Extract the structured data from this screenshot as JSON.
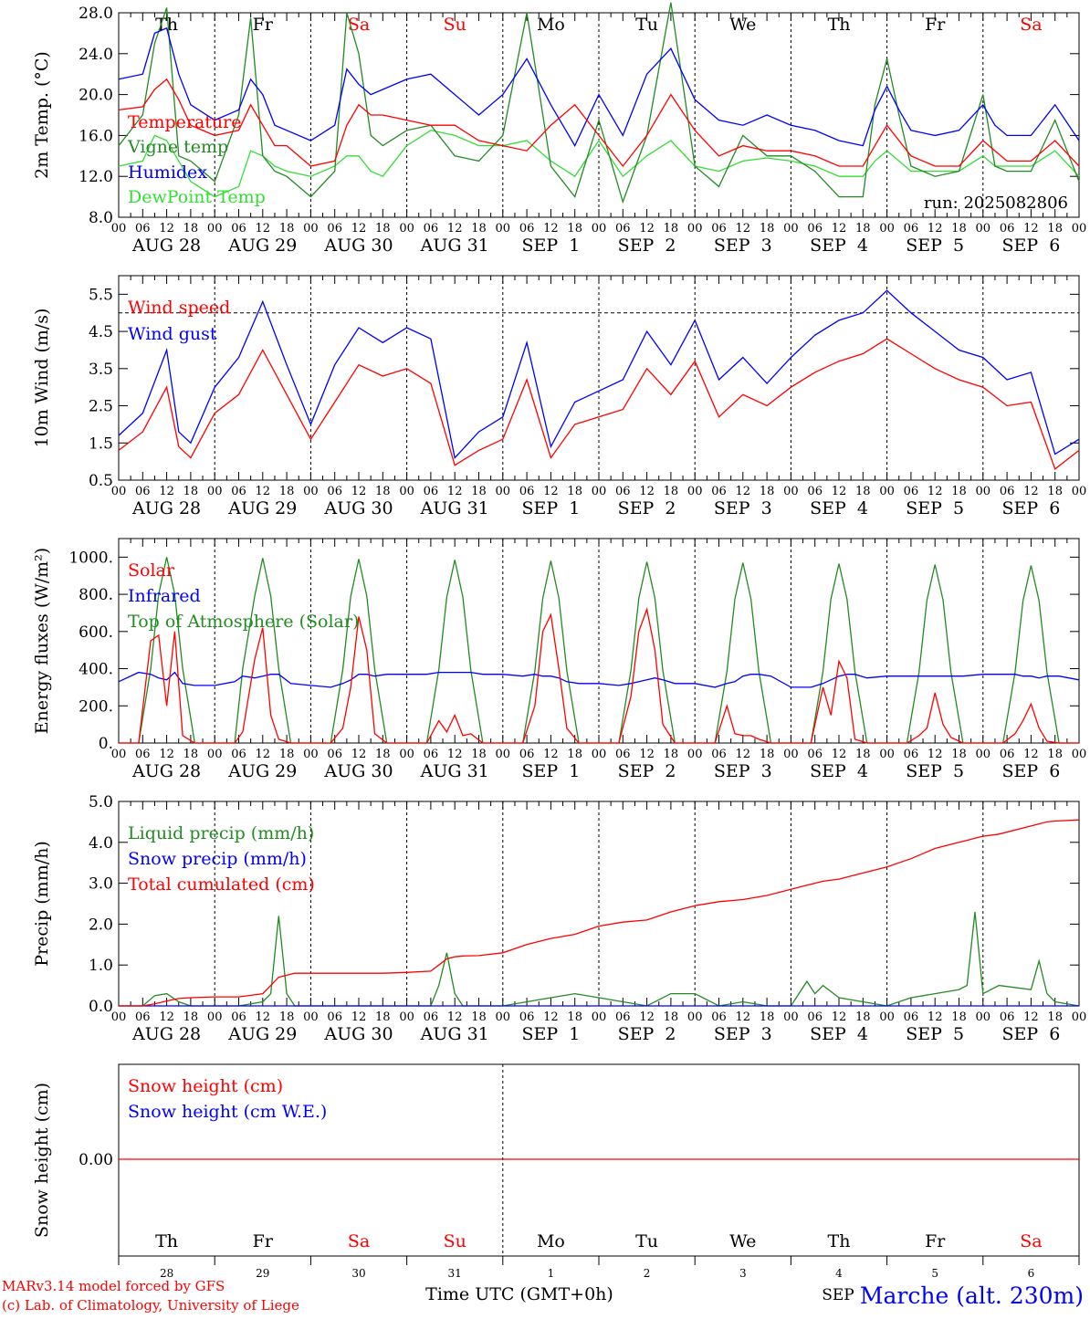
{
  "days": {
    "weekdays": [
      "Th",
      "Fr",
      "Sa",
      "Su",
      "Mo",
      "Tu",
      "We",
      "Th",
      "Fr",
      "Sa"
    ],
    "weekend_flags": [
      false,
      false,
      true,
      true,
      false,
      false,
      false,
      false,
      false,
      true
    ],
    "dates": [
      "AUG 28",
      "AUG 29",
      "AUG 30",
      "AUG 31",
      "SEP  1",
      "SEP  2",
      "SEP  3",
      "SEP  4",
      "SEP  5",
      "SEP  6"
    ],
    "day_numbers": [
      "28",
      "29",
      "30",
      "31",
      "1",
      "2",
      "3",
      "4",
      "5",
      "6"
    ],
    "hours": [
      "00",
      "06",
      "12",
      "18"
    ],
    "last_hour": "00"
  },
  "colors": {
    "red": "#ff0000",
    "darkgreen": "#228b22",
    "blue": "#0000ff",
    "lightgreen": "#33dd33",
    "weekend": "#ff0000"
  },
  "footer": {
    "model_line": "MARv3.14 model forced by GFS",
    "credit_line": "(c) Lab. of Climatology, University of Liege",
    "xlabel": "Time UTC (GMT+0h)",
    "month_overlay": "SEP",
    "station": "Marche (alt. 230m)"
  },
  "chart_data": [
    {
      "type": "line",
      "ylabel": "2m Temp. (°C)",
      "ylim": [
        8,
        28
      ],
      "yticks": [
        "8.0",
        "12.0",
        "16.0",
        "20.0",
        "24.0",
        "28.0"
      ],
      "run_label": "run: 2025082806",
      "show_weekdays": true,
      "show_dates": true,
      "x_hours": [
        0,
        6,
        9,
        12,
        15,
        18,
        24,
        30,
        33,
        36,
        39,
        42,
        48,
        54,
        57,
        60,
        63,
        66,
        72,
        78,
        84,
        90,
        96,
        102,
        108,
        114,
        120,
        126,
        132,
        138,
        144,
        150,
        156,
        162,
        168,
        174,
        180,
        186,
        189,
        192,
        195,
        198,
        204,
        210,
        216,
        219,
        222,
        228,
        234,
        240
      ],
      "series": [
        {
          "name": "Temperature",
          "color": "#ff0000",
          "values": [
            18.5,
            18.8,
            20.5,
            21.5,
            19.5,
            17.0,
            16.0,
            16.5,
            19.0,
            17.0,
            15.0,
            15.0,
            13.0,
            13.5,
            17.0,
            19.0,
            18.0,
            18.0,
            17.5,
            17.0,
            17.0,
            15.5,
            15.0,
            14.5,
            17.0,
            19.0,
            16.0,
            13.0,
            16.0,
            20.0,
            16.5,
            14.0,
            15.0,
            14.5,
            14.5,
            14.0,
            13.0,
            13.0,
            15.0,
            17.0,
            15.5,
            14.0,
            13.0,
            13.0,
            15.5,
            14.5,
            13.5,
            13.5,
            15.5,
            13.0
          ]
        },
        {
          "name": "Vigne temp",
          "color": "#228b22",
          "values": [
            15.0,
            18.0,
            25.0,
            28.5,
            14.0,
            13.5,
            11.5,
            18.0,
            27.5,
            14.0,
            12.5,
            12.0,
            10.0,
            12.5,
            28.0,
            24.0,
            16.0,
            15.0,
            16.5,
            17.0,
            14.0,
            13.5,
            16.0,
            28.0,
            13.0,
            10.0,
            17.5,
            9.5,
            16.0,
            29.0,
            13.0,
            11.0,
            16.0,
            14.0,
            14.0,
            12.5,
            10.0,
            10.0,
            19.0,
            23.5,
            18.0,
            13.0,
            12.0,
            12.5,
            20.0,
            13.0,
            12.5,
            12.5,
            17.5,
            11.5
          ]
        },
        {
          "name": "Humidex",
          "color": "#0000ff",
          "values": [
            21.5,
            22.0,
            26.0,
            26.5,
            22.0,
            19.0,
            17.5,
            18.5,
            21.5,
            20.0,
            17.0,
            16.5,
            15.5,
            17.0,
            22.5,
            21.0,
            20.0,
            20.5,
            21.5,
            22.0,
            20.0,
            18.0,
            20.0,
            23.5,
            19.0,
            15.0,
            20.0,
            16.0,
            22.0,
            24.5,
            19.5,
            17.5,
            17.0,
            18.0,
            17.0,
            16.5,
            15.5,
            15.0,
            18.5,
            20.8,
            18.5,
            16.5,
            16.0,
            16.5,
            19.0,
            17.0,
            16.0,
            16.0,
            19.0,
            15.5
          ]
        },
        {
          "name": "DewPoint Temp",
          "color": "#33dd33",
          "values": [
            13.0,
            13.5,
            16.0,
            15.5,
            13.5,
            11.5,
            10.0,
            11.0,
            14.5,
            14.0,
            13.0,
            12.5,
            12.0,
            13.0,
            14.0,
            14.0,
            12.5,
            12.0,
            15.0,
            16.5,
            16.0,
            15.0,
            15.0,
            15.5,
            13.5,
            12.0,
            15.5,
            12.0,
            14.0,
            15.5,
            13.0,
            12.5,
            13.5,
            13.8,
            13.5,
            13.0,
            12.0,
            12.0,
            13.5,
            14.5,
            13.5,
            12.5,
            12.5,
            12.5,
            14.0,
            13.0,
            13.0,
            13.0,
            14.5,
            12.0
          ]
        }
      ]
    },
    {
      "type": "line",
      "ylabel": "10m Wind (m/s)",
      "ylim": [
        0.5,
        6.0
      ],
      "yticks": [
        "0.5",
        "1.5",
        "2.5",
        "3.5",
        "4.5",
        "5.5"
      ],
      "reference_line": 5.0,
      "show_weekdays": false,
      "show_dates": true,
      "x_hours": [
        0,
        6,
        12,
        15,
        18,
        24,
        30,
        36,
        42,
        48,
        54,
        60,
        66,
        72,
        78,
        84,
        90,
        96,
        102,
        108,
        114,
        120,
        126,
        132,
        138,
        144,
        150,
        156,
        162,
        168,
        174,
        180,
        186,
        192,
        198,
        204,
        210,
        216,
        222,
        228,
        234,
        240
      ],
      "series": [
        {
          "name": "Wind speed",
          "color": "#ff0000",
          "values": [
            1.3,
            1.8,
            3.0,
            1.4,
            1.1,
            2.3,
            2.8,
            4.0,
            2.8,
            1.6,
            2.6,
            3.6,
            3.3,
            3.5,
            3.1,
            0.9,
            1.3,
            1.6,
            3.2,
            1.1,
            2.0,
            2.2,
            2.4,
            3.5,
            2.8,
            3.7,
            2.2,
            2.8,
            2.5,
            3.0,
            3.4,
            3.7,
            3.9,
            4.3,
            3.9,
            3.5,
            3.2,
            3.0,
            2.5,
            2.6,
            0.8,
            1.3
          ]
        },
        {
          "name": "Wind gust",
          "color": "#0000ff",
          "values": [
            1.7,
            2.3,
            4.0,
            1.8,
            1.5,
            3.0,
            3.8,
            5.3,
            3.6,
            2.0,
            3.6,
            4.6,
            4.2,
            4.6,
            4.3,
            1.1,
            1.8,
            2.2,
            4.2,
            1.4,
            2.6,
            2.9,
            3.2,
            4.5,
            3.6,
            4.8,
            3.2,
            3.8,
            3.1,
            3.8,
            4.4,
            4.8,
            5.0,
            5.6,
            5.0,
            4.5,
            4.0,
            3.8,
            3.2,
            3.4,
            1.2,
            1.6
          ]
        }
      ]
    },
    {
      "type": "line",
      "ylabel": "Energy fluxes (W/m²)",
      "ylim": [
        0,
        1100
      ],
      "yticks": [
        "0.",
        "200.",
        "400.",
        "600.",
        "800.",
        "1000."
      ],
      "show_weekdays": false,
      "show_dates": true,
      "x_hours": [
        0,
        5,
        8,
        10,
        12,
        14,
        16,
        19,
        24,
        29,
        31,
        34,
        36,
        38,
        40,
        43,
        48,
        53,
        56,
        58,
        60,
        62,
        64,
        67,
        72,
        77,
        80,
        82,
        84,
        86,
        88,
        91,
        96,
        101,
        104,
        106,
        108,
        110,
        112,
        115,
        120,
        125,
        128,
        130,
        132,
        134,
        136,
        139,
        144,
        149,
        152,
        154,
        156,
        158,
        160,
        163,
        168,
        173,
        176,
        178,
        180,
        182,
        184,
        187,
        192,
        197,
        200,
        202,
        204,
        206,
        208,
        211,
        216,
        221,
        224,
        226,
        228,
        230,
        232,
        235,
        240
      ],
      "series": [
        {
          "name": "Solar",
          "color": "#ff0000",
          "values": [
            0,
            0,
            550,
            580,
            200,
            600,
            40,
            0,
            0,
            0,
            60,
            450,
            620,
            150,
            20,
            0,
            0,
            0,
            80,
            300,
            680,
            500,
            50,
            0,
            0,
            0,
            120,
            60,
            150,
            40,
            50,
            0,
            0,
            0,
            200,
            600,
            690,
            400,
            80,
            0,
            0,
            0,
            250,
            600,
            720,
            500,
            100,
            0,
            0,
            0,
            200,
            50,
            40,
            40,
            20,
            0,
            0,
            0,
            300,
            150,
            440,
            350,
            20,
            0,
            0,
            0,
            40,
            80,
            270,
            100,
            30,
            0,
            0,
            0,
            50,
            120,
            210,
            80,
            10,
            0,
            0
          ]
        },
        {
          "name": "Infrared",
          "color": "#0000ff",
          "values": [
            330,
            380,
            370,
            350,
            340,
            380,
            320,
            310,
            310,
            330,
            360,
            350,
            360,
            370,
            370,
            320,
            310,
            300,
            320,
            340,
            370,
            370,
            360,
            370,
            370,
            370,
            380,
            380,
            380,
            380,
            380,
            370,
            370,
            360,
            370,
            360,
            360,
            350,
            330,
            320,
            320,
            310,
            320,
            330,
            340,
            350,
            340,
            320,
            320,
            300,
            320,
            330,
            360,
            370,
            370,
            360,
            300,
            300,
            320,
            340,
            360,
            370,
            370,
            350,
            360,
            360,
            360,
            360,
            360,
            360,
            360,
            360,
            370,
            370,
            370,
            360,
            360,
            350,
            360,
            360,
            340
          ]
        },
        {
          "name": "Top of Atmosphere (Solar)",
          "color": "#228b22",
          "values": [
            0,
            0,
            400,
            800,
            1000,
            800,
            400,
            0,
            0,
            0,
            400,
            790,
            995,
            790,
            400,
            0,
            0,
            0,
            395,
            790,
            990,
            790,
            395,
            0,
            0,
            0,
            395,
            785,
            985,
            785,
            395,
            0,
            0,
            0,
            390,
            780,
            980,
            780,
            390,
            0,
            0,
            0,
            390,
            780,
            975,
            780,
            390,
            0,
            0,
            0,
            385,
            775,
            970,
            775,
            385,
            0,
            0,
            0,
            385,
            775,
            965,
            775,
            385,
            0,
            0,
            0,
            380,
            770,
            960,
            770,
            380,
            0,
            0,
            0,
            380,
            765,
            955,
            765,
            380,
            0,
            0
          ]
        }
      ]
    },
    {
      "type": "line",
      "ylabel": "Precip (mm/h)",
      "ylim": [
        0,
        5
      ],
      "yticks": [
        "0.0",
        "1.0",
        "2.0",
        "3.0",
        "4.0",
        "5.0"
      ],
      "show_weekdays": false,
      "show_dates": true,
      "x_hours": [
        0,
        6,
        9,
        12,
        15,
        18,
        24,
        30,
        36,
        38,
        40,
        42,
        44,
        48,
        54,
        60,
        66,
        72,
        78,
        80,
        82,
        84,
        86,
        90,
        96,
        102,
        108,
        114,
        120,
        126,
        132,
        138,
        144,
        150,
        156,
        162,
        168,
        172,
        174,
        176,
        180,
        186,
        192,
        198,
        204,
        210,
        212,
        214,
        216,
        220,
        228,
        230,
        232,
        234,
        240
      ],
      "series": [
        {
          "name": "Liquid precip (mm/h)",
          "color": "#228b22",
          "values": [
            0,
            0,
            0.25,
            0.3,
            0.1,
            0,
            0,
            0,
            0.1,
            0.3,
            2.2,
            0.3,
            0,
            0,
            0,
            0,
            0,
            0,
            0,
            0.5,
            1.3,
            0.3,
            0,
            0,
            0,
            0.1,
            0.2,
            0.3,
            0.2,
            0.1,
            0,
            0.3,
            0.3,
            0,
            0.1,
            0,
            0,
            0.6,
            0.3,
            0.5,
            0.2,
            0.1,
            0,
            0.2,
            0.3,
            0.4,
            0.5,
            2.3,
            0.3,
            0.5,
            0.4,
            1.1,
            0.3,
            0.1,
            0
          ]
        },
        {
          "name": "Snow precip (mm/h)",
          "color": "#0000ff",
          "values": [
            0,
            0,
            0,
            0,
            0,
            0,
            0,
            0,
            0,
            0,
            0,
            0,
            0,
            0,
            0,
            0,
            0,
            0,
            0,
            0,
            0,
            0,
            0,
            0,
            0,
            0,
            0,
            0,
            0,
            0,
            0,
            0,
            0,
            0,
            0,
            0,
            0,
            0,
            0,
            0,
            0,
            0,
            0,
            0,
            0,
            0,
            0,
            0,
            0,
            0,
            0,
            0,
            0,
            0,
            0
          ]
        },
        {
          "name": "Total cumulated (cm)",
          "color": "#ff0000",
          "values": [
            0,
            0,
            0.05,
            0.12,
            0.18,
            0.2,
            0.22,
            0.22,
            0.3,
            0.5,
            0.7,
            0.75,
            0.8,
            0.8,
            0.8,
            0.8,
            0.8,
            0.82,
            0.85,
            1.0,
            1.15,
            1.2,
            1.22,
            1.23,
            1.3,
            1.5,
            1.65,
            1.75,
            1.95,
            2.05,
            2.1,
            2.3,
            2.45,
            2.55,
            2.6,
            2.7,
            2.85,
            2.95,
            3.0,
            3.05,
            3.1,
            3.25,
            3.4,
            3.6,
            3.85,
            4.0,
            4.05,
            4.1,
            4.15,
            4.2,
            4.4,
            4.45,
            4.5,
            4.52,
            4.55
          ]
        }
      ]
    },
    {
      "type": "line",
      "ylabel": "Snow height (cm)",
      "yticks": [
        "0.00"
      ],
      "show_weekdays": false,
      "show_dates": false,
      "x_hours": [
        0,
        240
      ],
      "series": [
        {
          "name": "Snow height (cm)",
          "color": "#ff0000",
          "values": [
            0,
            0
          ]
        },
        {
          "name": "Snow height (cm W.E.)",
          "color": "#0000ff",
          "values": []
        }
      ]
    }
  ]
}
